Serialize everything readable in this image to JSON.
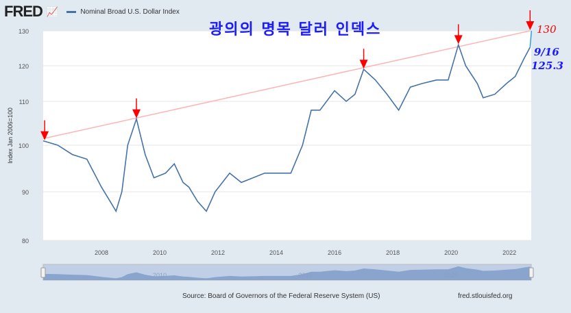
{
  "header": {
    "logo": "FRED",
    "legend_label": "Nominal Broad U.S. Dollar Index",
    "series_color": "#4572a7"
  },
  "annotation": {
    "title": "광의의 명목 달러 인덱스",
    "target_label": "130",
    "date_label": "9/16",
    "value_label": "125.3",
    "trend_color": "#ffb3b3",
    "arrow_color": "#ff0000"
  },
  "footer": {
    "source": "Source: Board of Governors of the Federal Reserve System (US)",
    "url": "fred.stlouisfed.org"
  },
  "chart_data": {
    "type": "line",
    "title": "",
    "ylabel": "Index Jan 2006=100",
    "xlim": [
      2006.0,
      2022.75
    ],
    "ylim": [
      80,
      130
    ],
    "yticks": [
      80,
      90,
      100,
      110,
      120,
      130
    ],
    "xticks": [
      "2008",
      "2010",
      "2012",
      "2014",
      "2016",
      "2018",
      "2020",
      "2022"
    ],
    "navigator_ticks": [
      "2010",
      "2015",
      "2020"
    ],
    "grid": true,
    "series": [
      {
        "name": "Nominal Broad U.S. Dollar Index",
        "x": [
          2006.0,
          2006.5,
          2007.0,
          2007.5,
          2008.0,
          2008.3,
          2008.5,
          2008.7,
          2008.9,
          2009.2,
          2009.5,
          2009.8,
          2010.2,
          2010.5,
          2010.8,
          2011.0,
          2011.3,
          2011.6,
          2011.9,
          2012.4,
          2012.8,
          2013.2,
          2013.6,
          2014.0,
          2014.5,
          2014.9,
          2015.2,
          2015.5,
          2016.0,
          2016.4,
          2016.7,
          2017.0,
          2017.4,
          2017.8,
          2018.2,
          2018.6,
          2019.0,
          2019.5,
          2019.9,
          2020.25,
          2020.5,
          2020.9,
          2021.1,
          2021.5,
          2021.9,
          2022.2,
          2022.5,
          2022.71
        ],
        "y": [
          101,
          100,
          98,
          97,
          91,
          88,
          86,
          90,
          100,
          106,
          98,
          93,
          94,
          96,
          92,
          91,
          88,
          86,
          90,
          94,
          92,
          93,
          94,
          94,
          94,
          100,
          108,
          108,
          113,
          110,
          112,
          119,
          116,
          112,
          108,
          114,
          115,
          116,
          116,
          126,
          120,
          115,
          111,
          112,
          115,
          117,
          122,
          125.3
        ]
      }
    ],
    "trendline": {
      "from": [
        2006.0,
        101.5
      ],
      "to": [
        2022.71,
        130
      ]
    },
    "arrows_at": [
      2006.05,
      2009.2,
      2017.0,
      2020.25,
      2022.71
    ]
  }
}
